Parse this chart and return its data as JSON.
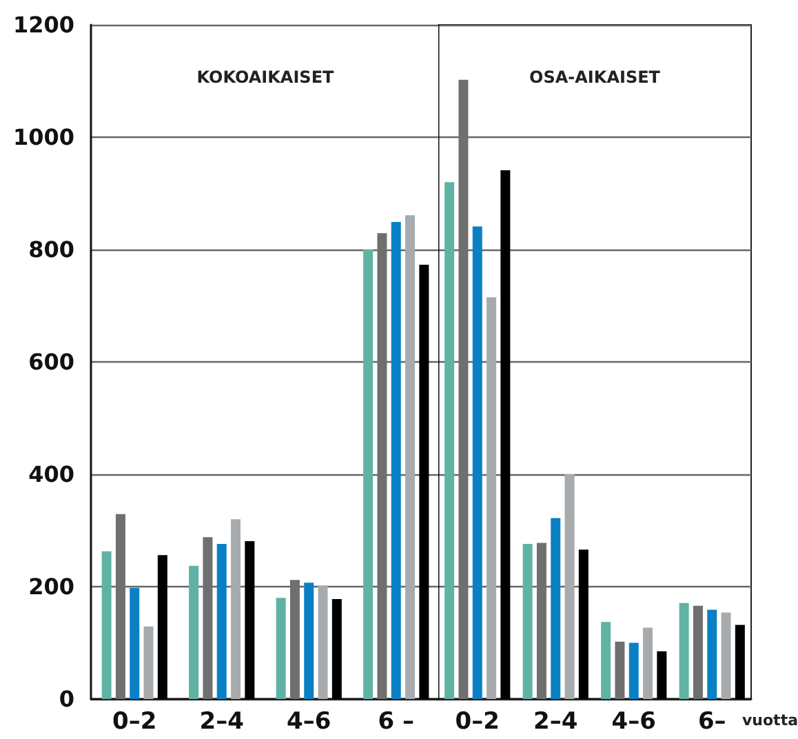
{
  "chart_data": [
    {
      "type": "bar",
      "title": "KOKOAIKAISET",
      "categories": [
        "0–2",
        "2–4",
        "4–6",
        "6 –"
      ],
      "ylim": [
        0,
        1200
      ],
      "yticks": [
        0,
        200,
        400,
        600,
        800,
        1000,
        1200
      ],
      "grid": "y",
      "series": [
        {
          "color": "#5fb3a5",
          "values": [
            263,
            237,
            180,
            800
          ]
        },
        {
          "color": "#6f6f70",
          "values": [
            329,
            288,
            212,
            829
          ]
        },
        {
          "color": "#0a80c4",
          "values": [
            198,
            276,
            207,
            849
          ]
        },
        {
          "color": "#a7abad",
          "values": [
            129,
            320,
            202,
            861
          ]
        },
        {
          "color": "#000000",
          "values": [
            256,
            281,
            178,
            773
          ]
        }
      ]
    },
    {
      "type": "bar",
      "title": "OSA-AIKAISET",
      "categories": [
        "0–2",
        "2–4",
        "4–6",
        "6–"
      ],
      "ylim": [
        0,
        1200
      ],
      "yticks": [
        0,
        200,
        400,
        600,
        800,
        1000,
        1200
      ],
      "grid": "y",
      "tick_labels": "x",
      "annotations": [
        "vuotta"
      ],
      "series": [
        {
          "color": "#5fb3a5",
          "values": [
            920,
            276,
            137,
            171
          ]
        },
        {
          "color": "#6f6f70",
          "values": [
            1102,
            278,
            102,
            166
          ]
        },
        {
          "color": "#0a80c4",
          "values": [
            841,
            322,
            100,
            159
          ]
        },
        {
          "color": "#a7abad",
          "values": [
            715,
            400,
            127,
            154
          ]
        },
        {
          "color": "#000000",
          "values": [
            941,
            266,
            85,
            132
          ]
        }
      ]
    }
  ]
}
